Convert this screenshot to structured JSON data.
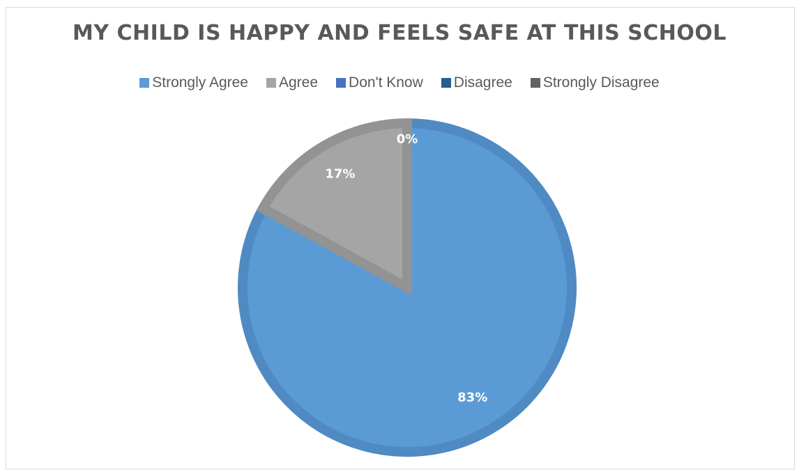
{
  "chart_data": {
    "type": "pie",
    "title": "MY CHILD IS HAPPY AND FEELS SAFE AT THIS SCHOOL",
    "legend_position": "top",
    "categories": [
      "Strongly Agree",
      "Agree",
      "Don't Know",
      "Disagree",
      "Strongly Disagree"
    ],
    "values": [
      83,
      17,
      0,
      0,
      0
    ],
    "data_labels": [
      "83%",
      "17%",
      "0%",
      "",
      ""
    ],
    "colors": [
      "#5b9bd5",
      "#a5a5a5",
      "#4472c4",
      "#255e91",
      "#636363"
    ],
    "edge_colors": [
      "#4f8ac3",
      "#939393",
      "#3c65ae",
      "#1f5080",
      "#565656"
    ]
  }
}
